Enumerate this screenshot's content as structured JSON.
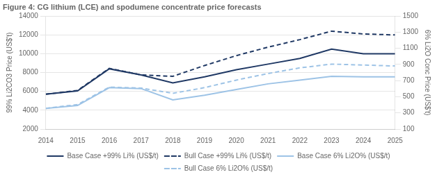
{
  "chart_data": {
    "type": "line",
    "title": "Figure 4: CG lithium (LCE) and spodumene concentrate price forecasts",
    "x": [
      2014,
      2015,
      2016,
      2017,
      2018,
      2019,
      2020,
      2021,
      2022,
      2023,
      2024,
      2025
    ],
    "xlim": [
      2014,
      2025
    ],
    "xticks": [
      2014,
      2015,
      2016,
      2017,
      2018,
      2019,
      2020,
      2021,
      2022,
      2023,
      2024,
      2025
    ],
    "ylabel": "99% Li2CO3 Price (US$'t)",
    "ylim": [
      2000,
      14000
    ],
    "yticks": [
      2000,
      4000,
      6000,
      8000,
      10000,
      12000,
      14000
    ],
    "y2label": "6% Li2O Conc Price (US$'t)",
    "y2lim": [
      100,
      1500
    ],
    "y2ticks": [
      100,
      300,
      500,
      700,
      900,
      1100,
      1300,
      1500
    ],
    "grid": true,
    "legend": "bottom",
    "series": [
      {
        "name": "Base Case +99% Li% (US$/t)",
        "color": "#1F3864",
        "line_style": "solid",
        "values": [
          5700,
          6050,
          8400,
          7750,
          6900,
          7550,
          8300,
          8900,
          9500,
          10500,
          10000,
          10000
        ]
      },
      {
        "name": "Bull Case +99% Li% (US$/t)",
        "color": "#1F3864",
        "line_style": "dashed",
        "values": [
          5700,
          6100,
          8450,
          7750,
          7600,
          8750,
          9800,
          10700,
          11500,
          12400,
          12100,
          12000
        ]
      },
      {
        "name": "Base Case 6% Li2O% (US$/t)",
        "color": "#9DC3E6",
        "line_style": "solid",
        "values": [
          4200,
          4500,
          6400,
          6300,
          5100,
          5600,
          6200,
          6800,
          7200,
          7600,
          7550,
          7550
        ]
      },
      {
        "name": "Bull Case 6% Li2O% (US$/t)",
        "color": "#9DC3E6",
        "line_style": "dashed",
        "values": [
          4200,
          4600,
          6450,
          6350,
          5800,
          6400,
          7200,
          7900,
          8500,
          8900,
          8800,
          8700
        ]
      }
    ]
  }
}
